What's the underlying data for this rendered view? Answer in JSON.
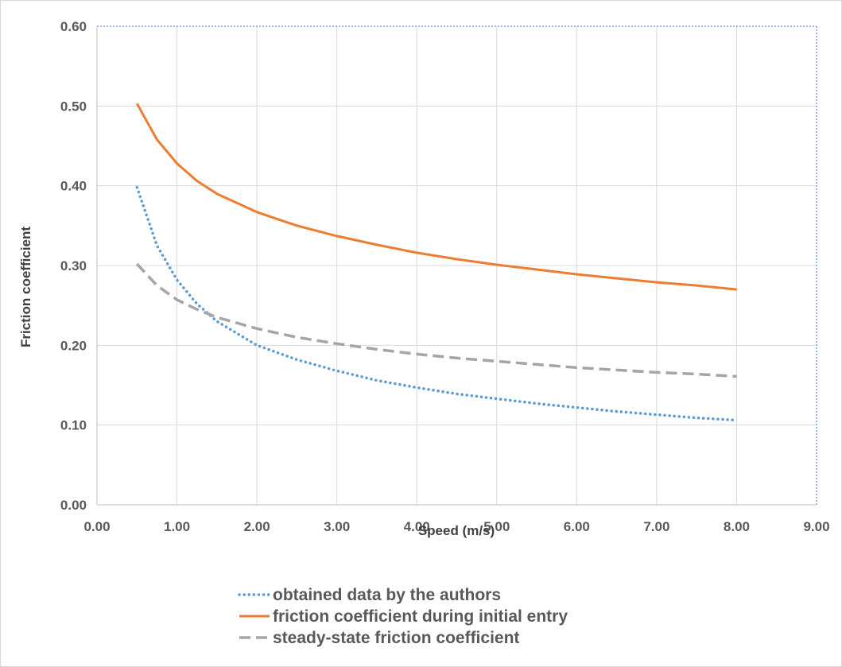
{
  "chart_data": {
    "type": "line",
    "title": "",
    "xlabel": "Speed (m/s)",
    "ylabel": "Friction coefficient",
    "xlim": [
      0,
      9
    ],
    "ylim": [
      0,
      0.6
    ],
    "x_ticks": [
      "0.00",
      "1.00",
      "2.00",
      "3.00",
      "4.00",
      "5.00",
      "6.00",
      "7.00",
      "8.00",
      "9.00"
    ],
    "y_ticks": [
      "0.00",
      "0.10",
      "0.20",
      "0.30",
      "0.40",
      "0.50",
      "0.60"
    ],
    "grid": true,
    "legend_position": "bottom",
    "series": [
      {
        "name": "obtained data by the authors",
        "color": "#5b9bd5",
        "style": "dotted",
        "x": [
          0.5,
          0.75,
          1.0,
          1.25,
          1.5,
          2.0,
          2.5,
          3.0,
          3.5,
          4.0,
          4.5,
          5.0,
          5.5,
          6.0,
          6.5,
          7.0,
          7.5,
          8.0
        ],
        "y": [
          0.398,
          0.325,
          0.282,
          0.252,
          0.23,
          0.2,
          0.182,
          0.168,
          0.156,
          0.147,
          0.139,
          0.133,
          0.127,
          0.122,
          0.117,
          0.113,
          0.109,
          0.106
        ]
      },
      {
        "name": "friction coefficient during initial entry",
        "color": "#ed7d31",
        "style": "solid",
        "x": [
          0.5,
          0.75,
          1.0,
          1.25,
          1.5,
          2.0,
          2.5,
          3.0,
          3.5,
          4.0,
          4.5,
          5.0,
          5.5,
          6.0,
          6.5,
          7.0,
          7.5,
          8.0
        ],
        "y": [
          0.503,
          0.458,
          0.428,
          0.406,
          0.39,
          0.367,
          0.35,
          0.337,
          0.326,
          0.316,
          0.308,
          0.301,
          0.295,
          0.289,
          0.284,
          0.279,
          0.275,
          0.27
        ]
      },
      {
        "name": "steady-state friction coefficient",
        "color": "#a5a5a5",
        "style": "dashed",
        "x": [
          0.5,
          0.75,
          1.0,
          1.25,
          1.5,
          2.0,
          2.5,
          3.0,
          3.5,
          4.0,
          4.5,
          5.0,
          5.5,
          6.0,
          6.5,
          7.0,
          7.5,
          8.0
        ],
        "y": [
          0.302,
          0.275,
          0.257,
          0.245,
          0.235,
          0.221,
          0.21,
          0.202,
          0.195,
          0.189,
          0.184,
          0.18,
          0.176,
          0.172,
          0.169,
          0.166,
          0.164,
          0.161
        ]
      }
    ]
  }
}
